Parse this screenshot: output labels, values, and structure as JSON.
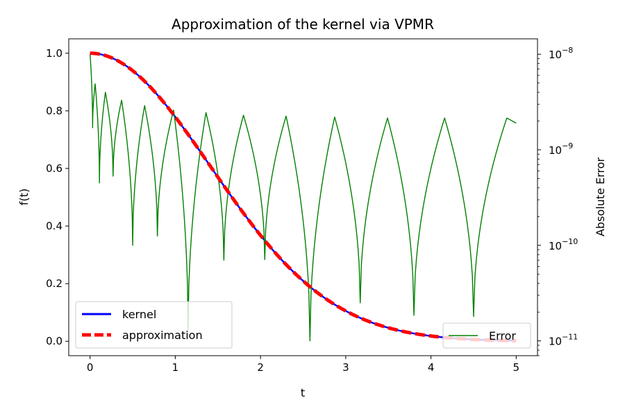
{
  "chart_data": {
    "type": "line",
    "title": "Approximation of the kernel via VPMR",
    "xlabel": "t",
    "ylabel": "f(t)",
    "y2label": "Absolute Error",
    "xlim": [
      -0.25,
      5.25
    ],
    "ylim": [
      -0.05,
      1.05
    ],
    "y2scale": "log",
    "y2lim": [
      7e-12,
      1.45e-08
    ],
    "xticks": [
      0,
      1,
      2,
      3,
      4,
      5
    ],
    "xtick_labels": [
      "0",
      "1",
      "2",
      "3",
      "4",
      "5"
    ],
    "yticks": [
      0.0,
      0.2,
      0.4,
      0.6,
      0.8,
      1.0
    ],
    "ytick_labels": [
      "0.0",
      "0.2",
      "0.4",
      "0.6",
      "0.8",
      "1.0"
    ],
    "y2ticks": [
      1e-11,
      1e-10,
      1e-09,
      1e-08
    ],
    "y2tick_labels": [
      {
        "base": "10",
        "exp": "−11"
      },
      {
        "base": "10",
        "exp": "−10"
      },
      {
        "base": "10",
        "exp": "−9"
      },
      {
        "base": "10",
        "exp": "−8"
      }
    ],
    "series": [
      {
        "name": "kernel",
        "axis": "left",
        "color": "#0000ff",
        "style": "solid",
        "function": "exp(-t^2/4)",
        "t_range": [
          0,
          5
        ]
      },
      {
        "name": "approximation",
        "axis": "left",
        "color": "#ff0000",
        "style": "dashed",
        "function": "exp(-t^2/4)",
        "t_range": [
          0,
          5
        ]
      },
      {
        "name": "Error",
        "axis": "right",
        "color": "#008000",
        "style": "solid",
        "initial": {
          "t": 0,
          "value": 1e-08
        },
        "envelope": [
          {
            "t": 0.06,
            "value": 4.9e-09
          },
          {
            "t": 0.18,
            "value": 4e-09
          },
          {
            "t": 0.37,
            "value": 3.3e-09
          },
          {
            "t": 0.64,
            "value": 2.9e-09
          },
          {
            "t": 0.98,
            "value": 2.6e-09
          },
          {
            "t": 1.36,
            "value": 2.45e-09
          },
          {
            "t": 1.8,
            "value": 2.3e-09
          },
          {
            "t": 2.3,
            "value": 2.25e-09
          },
          {
            "t": 2.87,
            "value": 2.2e-09
          },
          {
            "t": 3.49,
            "value": 2.15e-09
          },
          {
            "t": 4.16,
            "value": 2.15e-09
          },
          {
            "t": 4.89,
            "value": 2.15e-09
          }
        ],
        "end": {
          "t": 5.0,
          "value": 1.9e-09
        },
        "minima": [
          {
            "t": 0.03,
            "value": 1.7e-09
          },
          {
            "t": 0.11,
            "value": 4.5e-10
          },
          {
            "t": 0.27,
            "value": 5.3e-10
          },
          {
            "t": 0.5,
            "value": 1e-10
          },
          {
            "t": 0.79,
            "value": 1.25e-10
          },
          {
            "t": 1.15,
            "value": 1.3e-11
          },
          {
            "t": 1.57,
            "value": 7e-11
          },
          {
            "t": 2.05,
            "value": 7.1e-11
          },
          {
            "t": 2.58,
            "value": 1e-11
          },
          {
            "t": 3.17,
            "value": 2.5e-11
          },
          {
            "t": 3.8,
            "value": 1.85e-11
          },
          {
            "t": 4.5,
            "value": 1.8e-11
          }
        ]
      }
    ],
    "legend_left": {
      "placement": "lower-left",
      "entries": [
        "kernel",
        "approximation"
      ]
    },
    "legend_right": {
      "placement": "lower-right",
      "entries": [
        "Error"
      ]
    },
    "grid": false
  }
}
